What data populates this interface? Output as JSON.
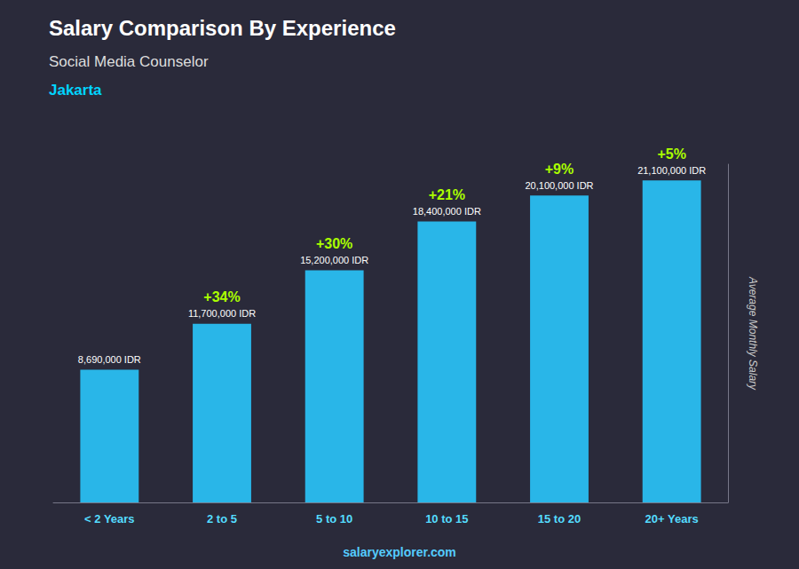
{
  "chart_data": {
    "type": "bar",
    "title": "Salary Comparison By Experience",
    "subtitle": "Social Media Counselor",
    "city": "Jakarta",
    "y_label": "Average Monthly Salary",
    "categories": [
      "< 2 Years",
      "2 to 5",
      "5 to 10",
      "10 to 15",
      "15 to 20",
      "20+ Years"
    ],
    "values": [
      8690000,
      11700000,
      15200000,
      18400000,
      20100000,
      21100000
    ],
    "value_labels": [
      "8,690,000 IDR",
      "11,700,000 IDR",
      "15,200,000 IDR",
      "18,400,000 IDR",
      "20,100,000 IDR",
      "21,100,000 IDR"
    ],
    "data_labels": true,
    "annotations": [
      "+34%",
      "+30%",
      "+21%",
      "+9%",
      "+5%"
    ],
    "watermark": "salaryexplorer.com",
    "color": "#29b6e8",
    "ylim": [
      0,
      22155000
    ],
    "grid": false,
    "tick_labels": "x"
  }
}
